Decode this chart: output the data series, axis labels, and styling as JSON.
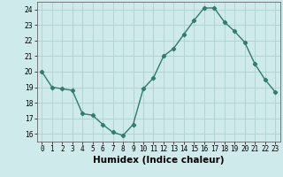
{
  "x": [
    0,
    1,
    2,
    3,
    4,
    5,
    6,
    7,
    8,
    9,
    10,
    11,
    12,
    13,
    14,
    15,
    16,
    17,
    18,
    19,
    20,
    21,
    22,
    23
  ],
  "y": [
    20.0,
    19.0,
    18.9,
    18.8,
    17.3,
    17.2,
    16.6,
    16.1,
    15.9,
    16.6,
    18.9,
    19.6,
    21.0,
    21.5,
    22.4,
    23.3,
    24.1,
    24.1,
    23.2,
    22.6,
    21.9,
    20.5,
    19.5,
    18.7
  ],
  "line_color": "#2e7d6e",
  "marker": "D",
  "marker_size": 2.2,
  "bg_color": "#ceeaea",
  "grid_color": "#b0d0d0",
  "xlabel": "Humidex (Indice chaleur)",
  "xlim": [
    -0.5,
    23.5
  ],
  "ylim": [
    15.5,
    24.5
  ],
  "yticks": [
    16,
    17,
    18,
    19,
    20,
    21,
    22,
    23,
    24
  ],
  "xticks": [
    0,
    1,
    2,
    3,
    4,
    5,
    6,
    7,
    8,
    9,
    10,
    11,
    12,
    13,
    14,
    15,
    16,
    17,
    18,
    19,
    20,
    21,
    22,
    23
  ],
  "xlabel_fontsize": 7.5,
  "tick_fontsize": 5.5,
  "line_width": 1.0
}
